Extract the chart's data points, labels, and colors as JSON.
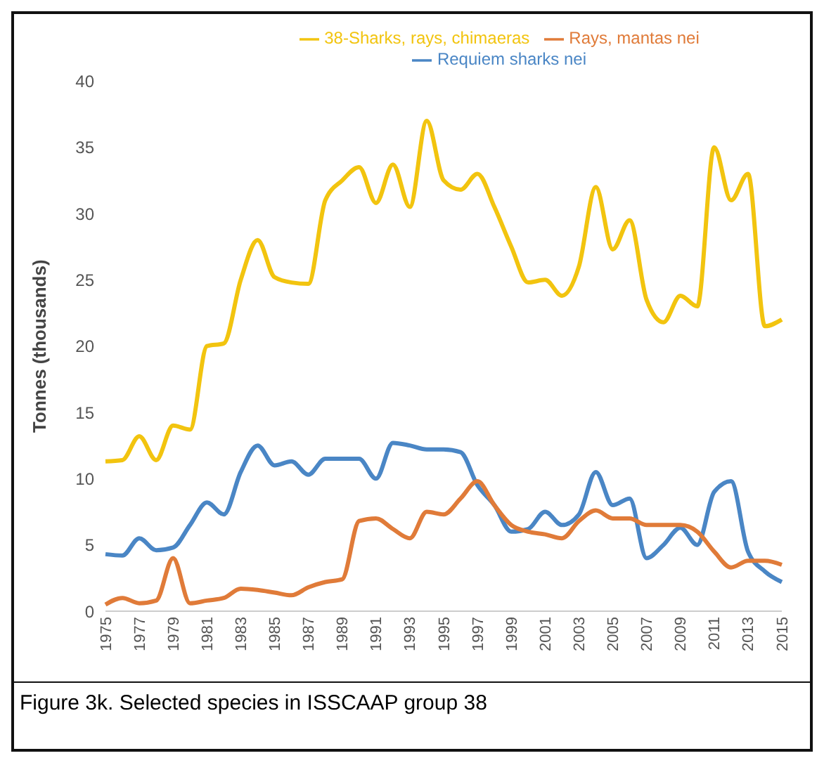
{
  "chart_data": {
    "type": "line",
    "ylabel": "Tonnes (thousands)",
    "categories": [
      "1975",
      null,
      "1977",
      null,
      "1979",
      null,
      "1981",
      null,
      "1983",
      null,
      "1985",
      null,
      "1987",
      null,
      "1989",
      null,
      "1991",
      null,
      "1993",
      null,
      "1995",
      null,
      "1997",
      null,
      "1999",
      null,
      "2001",
      null,
      "2003",
      null,
      "2005",
      null,
      "2007",
      null,
      "2009",
      null,
      "2011",
      null,
      "2013",
      null,
      "2015"
    ],
    "series": [
      {
        "name": "Requiem sharks nei",
        "color": "#4a86c5",
        "values": [
          4.3,
          4.2,
          5.5,
          4.6,
          4.8,
          6.5,
          8.2,
          7.3,
          10.5,
          12.5,
          11,
          11.3,
          10.3,
          11.5,
          11.5,
          11.5,
          10,
          12.7,
          12.5,
          12.2,
          12.2,
          12,
          9.5,
          8,
          6,
          6.2,
          7.5,
          6.5,
          7.3,
          10.5,
          8,
          8.5,
          4,
          5,
          6.3,
          5,
          9,
          9.8,
          4.5,
          3,
          2.2
        ]
      },
      {
        "name": "Rays, mantas nei",
        "color": "#e07b39",
        "values": [
          0.5,
          1,
          0.6,
          0.8,
          4,
          0.6,
          0.8,
          1,
          1.7,
          1.6,
          1.4,
          1.2,
          1.8,
          2.2,
          2.4,
          6.8,
          7,
          6.2,
          5.5,
          7.5,
          7.3,
          8.5,
          9.8,
          8,
          6.5,
          6,
          5.8,
          5.5,
          6.8,
          7.6,
          7,
          7,
          6.5,
          6.5,
          6.5,
          6,
          4.5,
          3.3,
          3.8,
          3.8,
          3.5
        ]
      },
      {
        "name": "38-Sharks, rays, chimaeras",
        "color": "#f2c40f",
        "values": [
          11.3,
          11.4,
          13.2,
          11.4,
          14,
          13.7,
          20,
          20.2,
          25,
          28,
          25.2,
          24.8,
          24.7,
          31,
          32.5,
          33.5,
          30.8,
          33.7,
          30.5,
          37,
          32.5,
          31.8,
          33,
          30.5,
          27.5,
          24.8,
          25,
          23.8,
          26,
          32,
          27.3,
          29.5,
          23.5,
          21.8,
          23.8,
          23,
          35,
          31,
          33,
          21.5,
          22
        ]
      }
    ],
    "ylim": [
      0,
      40
    ],
    "yticks": [
      0,
      5,
      10,
      15,
      20,
      25,
      30,
      35,
      40
    ],
    "grid": false,
    "legend": "top",
    "marker": "none",
    "line_style": "solid",
    "annotations": [
      "Figure 3k. Selected species in ISSCAAP group 38"
    ]
  }
}
